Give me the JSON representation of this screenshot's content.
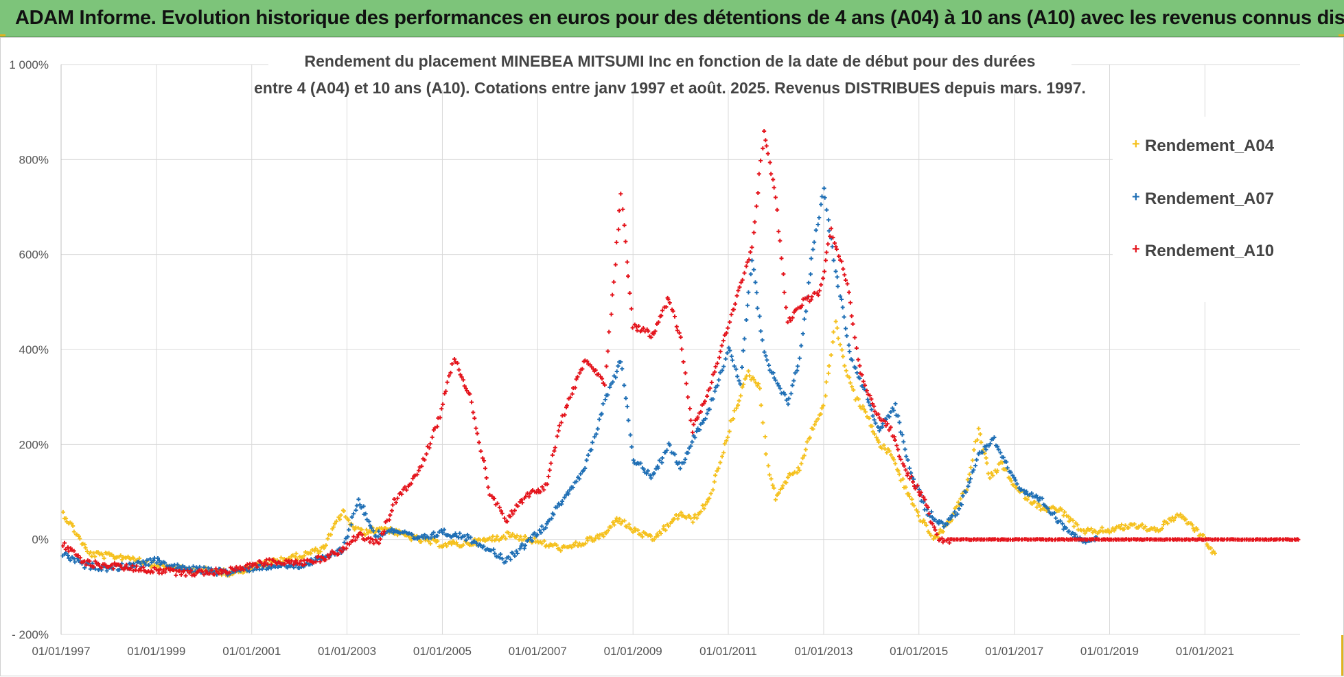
{
  "banner": {
    "title": "ADAM Informe. Evolution historique des performances en euros pour des détentions de 4 ans (A04) à 10 ans (A10) avec les revenus connus distribués"
  },
  "colors": {
    "banner_bg": "#7dc47a",
    "a04": "#f5c11e",
    "a07": "#1f6fb5",
    "a10": "#e4141c",
    "grid": "#d9d9d9"
  },
  "chart_data": {
    "type": "scatter",
    "title_lines": [
      "Rendement du placement MINEBEA MITSUMI  Inc en fonction de la date de début pour des durées",
      "entre 4 (A04) et 10 ans (A10). Cotations entre janv 1997 et août. 2025. Revenus DISTRIBUES depuis mars. 1997."
    ],
    "x_tick_labels": [
      "01/01/1997",
      "01/01/1999",
      "01/01/2001",
      "01/01/2003",
      "01/01/2005",
      "01/01/2007",
      "01/01/2009",
      "01/01/2011",
      "01/01/2013",
      "01/01/2015",
      "01/01/2017",
      "01/01/2019",
      "01/01/2021"
    ],
    "x_range": [
      "1997-01-01",
      "2022-12-31"
    ],
    "y_tick_labels": [
      "- 200%",
      "0%",
      "200%",
      "400%",
      "600%",
      "800%",
      "1 000%"
    ],
    "y_ticks": [
      -200,
      0,
      200,
      400,
      600,
      800,
      1000
    ],
    "ylim": [
      -200,
      1000
    ],
    "grid": true,
    "legend_position": "right",
    "marker": "+",
    "series": [
      {
        "name": "Rendement_A04",
        "color": "#f5c11e",
        "points": [
          [
            "1997-01-15",
            55
          ],
          [
            "1997-04-01",
            25
          ],
          [
            "1997-08-01",
            -30
          ],
          [
            "1998-01-01",
            -35
          ],
          [
            "1998-07-01",
            -38
          ],
          [
            "1999-01-01",
            -55
          ],
          [
            "1999-07-01",
            -62
          ],
          [
            "2000-01-01",
            -65
          ],
          [
            "2000-07-01",
            -70
          ],
          [
            "2001-01-01",
            -60
          ],
          [
            "2001-07-01",
            -45
          ],
          [
            "2002-01-01",
            -35
          ],
          [
            "2002-07-01",
            -20
          ],
          [
            "2002-12-01",
            60
          ],
          [
            "2003-03-01",
            20
          ],
          [
            "2003-06-01",
            15
          ],
          [
            "2003-10-01",
            25
          ],
          [
            "2004-03-01",
            10
          ],
          [
            "2004-07-01",
            0
          ],
          [
            "2005-01-01",
            -10
          ],
          [
            "2005-06-01",
            -10
          ],
          [
            "2006-01-01",
            0
          ],
          [
            "2006-06-01",
            10
          ],
          [
            "2006-11-01",
            0
          ],
          [
            "2007-03-01",
            -10
          ],
          [
            "2007-08-01",
            -20
          ],
          [
            "2008-01-01",
            -5
          ],
          [
            "2008-06-01",
            10
          ],
          [
            "2008-09-01",
            45
          ],
          [
            "2009-01-01",
            20
          ],
          [
            "2009-06-01",
            0
          ],
          [
            "2009-10-01",
            30
          ],
          [
            "2010-01-01",
            55
          ],
          [
            "2010-04-01",
            40
          ],
          [
            "2010-08-01",
            80
          ],
          [
            "2010-11-01",
            160
          ],
          [
            "2011-03-01",
            280
          ],
          [
            "2011-06-01",
            350
          ],
          [
            "2011-09-01",
            320
          ],
          [
            "2011-11-01",
            150
          ],
          [
            "2012-01-01",
            90
          ],
          [
            "2012-04-01",
            130
          ],
          [
            "2012-07-01",
            150
          ],
          [
            "2012-10-01",
            230
          ],
          [
            "2013-01-01",
            280
          ],
          [
            "2013-04-01",
            460
          ],
          [
            "2013-06-01",
            380
          ],
          [
            "2013-09-01",
            300
          ],
          [
            "2013-12-01",
            260
          ],
          [
            "2014-03-01",
            200
          ],
          [
            "2014-06-01",
            180
          ],
          [
            "2014-10-01",
            100
          ],
          [
            "2015-01-01",
            50
          ],
          [
            "2015-05-01",
            0
          ],
          [
            "2015-09-01",
            40
          ],
          [
            "2016-01-01",
            110
          ],
          [
            "2016-04-01",
            230
          ],
          [
            "2016-07-01",
            130
          ],
          [
            "2016-10-01",
            160
          ],
          [
            "2017-01-01",
            110
          ],
          [
            "2017-07-01",
            70
          ],
          [
            "2018-01-01",
            60
          ],
          [
            "2018-06-01",
            15
          ],
          [
            "2019-01-01",
            20
          ],
          [
            "2019-07-01",
            30
          ],
          [
            "2020-01-01",
            20
          ],
          [
            "2020-06-01",
            50
          ],
          [
            "2020-09-01",
            35
          ],
          [
            "2021-01-01",
            0
          ],
          [
            "2021-04-01",
            -40
          ]
        ]
      },
      {
        "name": "Rendement_A07",
        "color": "#1f6fb5",
        "points": [
          [
            "1997-01-15",
            -30
          ],
          [
            "1997-07-01",
            -55
          ],
          [
            "1998-01-01",
            -60
          ],
          [
            "1998-07-01",
            -55
          ],
          [
            "1999-01-01",
            -45
          ],
          [
            "1999-07-01",
            -60
          ],
          [
            "2000-01-01",
            -65
          ],
          [
            "2000-07-01",
            -70
          ],
          [
            "2001-01-01",
            -60
          ],
          [
            "2001-07-01",
            -55
          ],
          [
            "2002-01-01",
            -55
          ],
          [
            "2002-07-01",
            -40
          ],
          [
            "2002-12-01",
            -20
          ],
          [
            "2003-04-01",
            85
          ],
          [
            "2003-08-01",
            10
          ],
          [
            "2004-01-01",
            20
          ],
          [
            "2004-07-01",
            0
          ],
          [
            "2005-01-01",
            15
          ],
          [
            "2005-07-01",
            5
          ],
          [
            "2006-01-01",
            -20
          ],
          [
            "2006-05-01",
            -45
          ],
          [
            "2006-10-01",
            -10
          ],
          [
            "2007-03-01",
            30
          ],
          [
            "2007-07-01",
            80
          ],
          [
            "2008-01-01",
            150
          ],
          [
            "2008-06-01",
            290
          ],
          [
            "2008-10-01",
            380
          ],
          [
            "2009-01-01",
            170
          ],
          [
            "2009-06-01",
            130
          ],
          [
            "2009-10-01",
            200
          ],
          [
            "2010-01-01",
            150
          ],
          [
            "2010-04-01",
            210
          ],
          [
            "2010-08-01",
            270
          ],
          [
            "2011-01-01",
            400
          ],
          [
            "2011-04-01",
            330
          ],
          [
            "2011-07-01",
            590
          ],
          [
            "2011-10-01",
            390
          ],
          [
            "2012-01-01",
            330
          ],
          [
            "2012-04-01",
            290
          ],
          [
            "2012-07-01",
            380
          ],
          [
            "2012-10-01",
            590
          ],
          [
            "2013-01-01",
            740
          ],
          [
            "2013-04-01",
            570
          ],
          [
            "2013-08-01",
            380
          ],
          [
            "2013-12-01",
            300
          ],
          [
            "2014-03-01",
            230
          ],
          [
            "2014-07-01",
            280
          ],
          [
            "2014-11-01",
            140
          ],
          [
            "2015-03-01",
            60
          ],
          [
            "2015-07-01",
            30
          ],
          [
            "2015-11-01",
            60
          ],
          [
            "2016-04-01",
            180
          ],
          [
            "2016-08-01",
            210
          ],
          [
            "2016-11-01",
            160
          ],
          [
            "2017-03-01",
            100
          ],
          [
            "2017-08-01",
            80
          ],
          [
            "2018-01-01",
            30
          ],
          [
            "2018-06-01",
            0
          ],
          [
            "2018-10-01",
            0
          ]
        ]
      },
      {
        "name": "Rendement_A10",
        "color": "#e4141c",
        "points": [
          [
            "1997-01-15",
            -10
          ],
          [
            "1997-07-01",
            -50
          ],
          [
            "1998-01-01",
            -55
          ],
          [
            "1998-07-01",
            -60
          ],
          [
            "1999-01-01",
            -65
          ],
          [
            "1999-07-01",
            -70
          ],
          [
            "2000-01-01",
            -70
          ],
          [
            "2000-07-01",
            -65
          ],
          [
            "2001-01-01",
            -55
          ],
          [
            "2001-07-01",
            -45
          ],
          [
            "2002-01-01",
            -50
          ],
          [
            "2002-07-01",
            -40
          ],
          [
            "2002-12-01",
            -20
          ],
          [
            "2003-04-01",
            10
          ],
          [
            "2003-09-01",
            -10
          ],
          [
            "2004-01-01",
            80
          ],
          [
            "2004-07-01",
            140
          ],
          [
            "2004-12-01",
            250
          ],
          [
            "2005-04-01",
            380
          ],
          [
            "2005-08-01",
            300
          ],
          [
            "2006-01-01",
            100
          ],
          [
            "2006-05-01",
            40
          ],
          [
            "2006-10-01",
            90
          ],
          [
            "2007-03-01",
            110
          ],
          [
            "2007-07-01",
            250
          ],
          [
            "2008-01-01",
            380
          ],
          [
            "2008-06-01",
            330
          ],
          [
            "2008-10-01",
            730
          ],
          [
            "2009-01-01",
            450
          ],
          [
            "2009-06-01",
            430
          ],
          [
            "2009-10-01",
            510
          ],
          [
            "2010-01-01",
            420
          ],
          [
            "2010-04-01",
            230
          ],
          [
            "2010-08-01",
            310
          ],
          [
            "2011-01-01",
            450
          ],
          [
            "2011-04-01",
            530
          ],
          [
            "2011-07-01",
            610
          ],
          [
            "2011-10-01",
            860
          ],
          [
            "2012-01-01",
            720
          ],
          [
            "2012-04-01",
            460
          ],
          [
            "2012-08-01",
            500
          ],
          [
            "2012-12-01",
            520
          ],
          [
            "2013-03-01",
            650
          ],
          [
            "2013-07-01",
            540
          ],
          [
            "2013-10-01",
            360
          ],
          [
            "2014-02-01",
            270
          ],
          [
            "2014-06-01",
            230
          ],
          [
            "2014-10-01",
            140
          ],
          [
            "2015-02-01",
            90
          ],
          [
            "2015-06-01",
            -5
          ],
          [
            "2015-09-01",
            0
          ],
          [
            "2016-06-01",
            0
          ],
          [
            "2018-01-01",
            0
          ],
          [
            "2020-01-01",
            0
          ],
          [
            "2022-12-31",
            0
          ]
        ]
      }
    ]
  }
}
